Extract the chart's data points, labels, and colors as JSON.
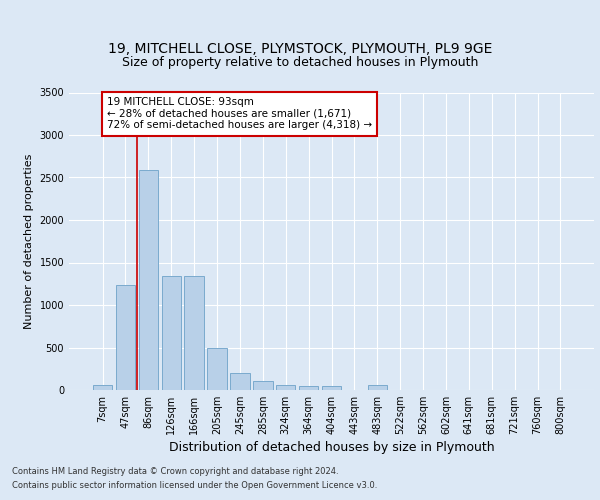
{
  "title_line1": "19, MITCHELL CLOSE, PLYMSTOCK, PLYMOUTH, PL9 9GE",
  "title_line2": "Size of property relative to detached houses in Plymouth",
  "xlabel": "Distribution of detached houses by size in Plymouth",
  "ylabel": "Number of detached properties",
  "footer_line1": "Contains HM Land Registry data © Crown copyright and database right 2024.",
  "footer_line2": "Contains public sector information licensed under the Open Government Licence v3.0.",
  "bar_labels": [
    "7sqm",
    "47sqm",
    "86sqm",
    "126sqm",
    "166sqm",
    "205sqm",
    "245sqm",
    "285sqm",
    "324sqm",
    "364sqm",
    "404sqm",
    "443sqm",
    "483sqm",
    "522sqm",
    "562sqm",
    "602sqm",
    "641sqm",
    "681sqm",
    "721sqm",
    "760sqm",
    "800sqm"
  ],
  "bar_values": [
    55,
    1230,
    2590,
    1340,
    1340,
    500,
    200,
    110,
    55,
    50,
    50,
    0,
    55,
    0,
    0,
    0,
    0,
    0,
    0,
    0,
    0
  ],
  "bar_color": "#b8d0e8",
  "bar_edge_color": "#7aaace",
  "vline_x": 1.5,
  "vline_color": "#cc0000",
  "annotation_text": "19 MITCHELL CLOSE: 93sqm\n← 28% of detached houses are smaller (1,671)\n72% of semi-detached houses are larger (4,318) →",
  "annotation_box_color": "#ffffff",
  "annotation_edge_color": "#cc0000",
  "ylim": [
    0,
    3500
  ],
  "yticks": [
    0,
    500,
    1000,
    1500,
    2000,
    2500,
    3000,
    3500
  ],
  "bg_color": "#dce8f5",
  "plot_bg_color": "#dce8f5",
  "grid_color": "#ffffff",
  "title_fontsize": 10,
  "subtitle_fontsize": 9,
  "xlabel_fontsize": 9,
  "ylabel_fontsize": 8,
  "tick_fontsize": 7,
  "annot_fontsize": 7.5,
  "footer_fontsize": 6
}
